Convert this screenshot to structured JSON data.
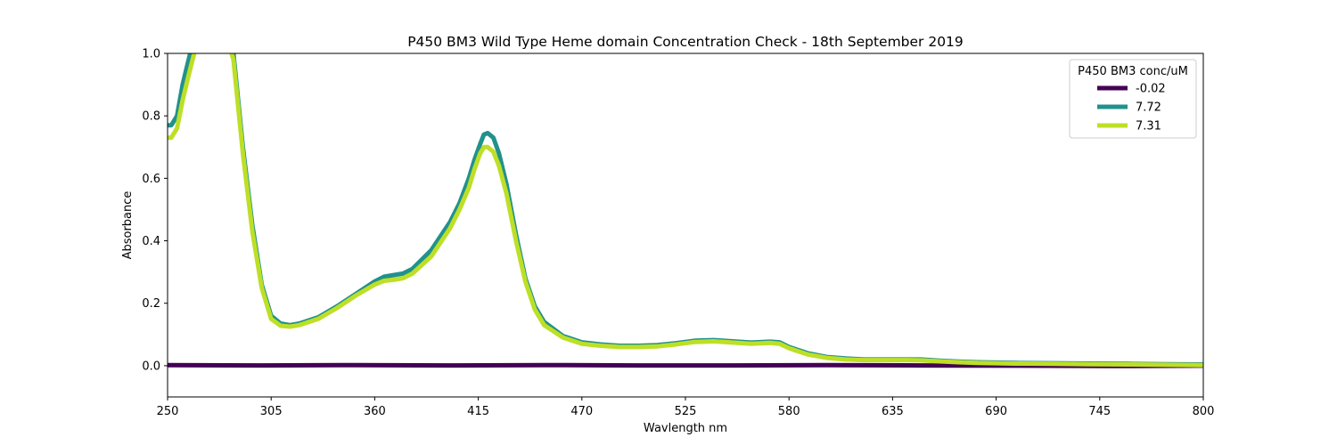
{
  "chart_data": {
    "type": "line",
    "title": "P450 BM3 Wild Type Heme domain Concentration Check - 18th September 2019",
    "xlabel": "Wavlength nm",
    "ylabel": "Absorbance",
    "xlim": [
      250,
      800
    ],
    "ylim": [
      -0.1,
      1.0
    ],
    "xticks": [
      "250",
      "305",
      "360",
      "415",
      "470",
      "525",
      "580",
      "635",
      "690",
      "745",
      "800"
    ],
    "yticks": [
      "0.0",
      "0.2",
      "0.4",
      "0.6",
      "0.8",
      "1.0"
    ],
    "grid": false,
    "legend": {
      "title": "P450 BM3 conc/uM",
      "placement": "top-right"
    },
    "series": [
      {
        "name": "-0.02",
        "color": "#440154",
        "x": [
          250,
          300,
          350,
          400,
          450,
          500,
          550,
          600,
          650,
          700,
          750,
          800
        ],
        "y": [
          0.002,
          0.001,
          0.002,
          0.001,
          0.002,
          0.001,
          0.001,
          0.002,
          0.001,
          0.0,
          -0.001,
          0.0
        ]
      },
      {
        "name": "7.72",
        "color": "#21918c",
        "x": [
          250,
          252,
          255,
          258,
          260,
          262,
          265,
          270,
          280,
          285,
          290,
          295,
          300,
          305,
          310,
          315,
          320,
          330,
          340,
          350,
          360,
          365,
          370,
          375,
          380,
          390,
          400,
          405,
          410,
          413,
          416,
          418,
          420,
          423,
          426,
          430,
          435,
          440,
          445,
          450,
          460,
          470,
          480,
          490,
          500,
          510,
          520,
          530,
          540,
          550,
          560,
          570,
          575,
          580,
          590,
          600,
          610,
          620,
          630,
          640,
          650,
          660,
          670,
          680,
          690,
          700,
          720,
          740,
          760,
          780,
          800
        ],
        "y": [
          0.77,
          0.77,
          0.8,
          0.9,
          0.95,
          1.0,
          1.05,
          1.15,
          1.1,
          1.0,
          0.7,
          0.45,
          0.26,
          0.16,
          0.135,
          0.13,
          0.135,
          0.155,
          0.19,
          0.23,
          0.27,
          0.285,
          0.29,
          0.295,
          0.31,
          0.37,
          0.46,
          0.52,
          0.6,
          0.66,
          0.71,
          0.74,
          0.745,
          0.73,
          0.68,
          0.58,
          0.42,
          0.28,
          0.19,
          0.14,
          0.095,
          0.075,
          0.068,
          0.064,
          0.064,
          0.066,
          0.072,
          0.08,
          0.082,
          0.078,
          0.074,
          0.077,
          0.075,
          0.06,
          0.04,
          0.028,
          0.023,
          0.02,
          0.02,
          0.02,
          0.02,
          0.016,
          0.013,
          0.011,
          0.01,
          0.009,
          0.008,
          0.007,
          0.006,
          0.005,
          0.004
        ]
      },
      {
        "name": "7.31",
        "color": "#bddf26",
        "x": [
          250,
          252,
          255,
          258,
          260,
          262,
          265,
          270,
          280,
          285,
          290,
          295,
          300,
          305,
          310,
          315,
          320,
          330,
          340,
          350,
          360,
          365,
          370,
          375,
          380,
          390,
          400,
          405,
          410,
          413,
          416,
          418,
          420,
          423,
          426,
          430,
          435,
          440,
          445,
          450,
          460,
          470,
          480,
          490,
          500,
          510,
          520,
          530,
          540,
          550,
          560,
          570,
          575,
          580,
          590,
          600,
          610,
          620,
          630,
          640,
          650,
          660,
          670,
          680,
          690,
          700,
          720,
          740,
          760,
          780,
          800
        ],
        "y": [
          0.73,
          0.73,
          0.76,
          0.85,
          0.9,
          0.95,
          1.02,
          1.12,
          1.08,
          0.98,
          0.68,
          0.43,
          0.25,
          0.15,
          0.128,
          0.125,
          0.13,
          0.15,
          0.185,
          0.225,
          0.26,
          0.272,
          0.275,
          0.28,
          0.295,
          0.35,
          0.44,
          0.5,
          0.57,
          0.63,
          0.68,
          0.7,
          0.7,
          0.685,
          0.64,
          0.55,
          0.4,
          0.27,
          0.18,
          0.13,
          0.09,
          0.07,
          0.064,
          0.06,
          0.06,
          0.062,
          0.068,
          0.076,
          0.078,
          0.074,
          0.07,
          0.073,
          0.07,
          0.056,
          0.036,
          0.025,
          0.02,
          0.018,
          0.018,
          0.018,
          0.017,
          0.014,
          0.011,
          0.009,
          0.008,
          0.007,
          0.006,
          0.005,
          0.004,
          0.003,
          0.002
        ]
      }
    ]
  }
}
